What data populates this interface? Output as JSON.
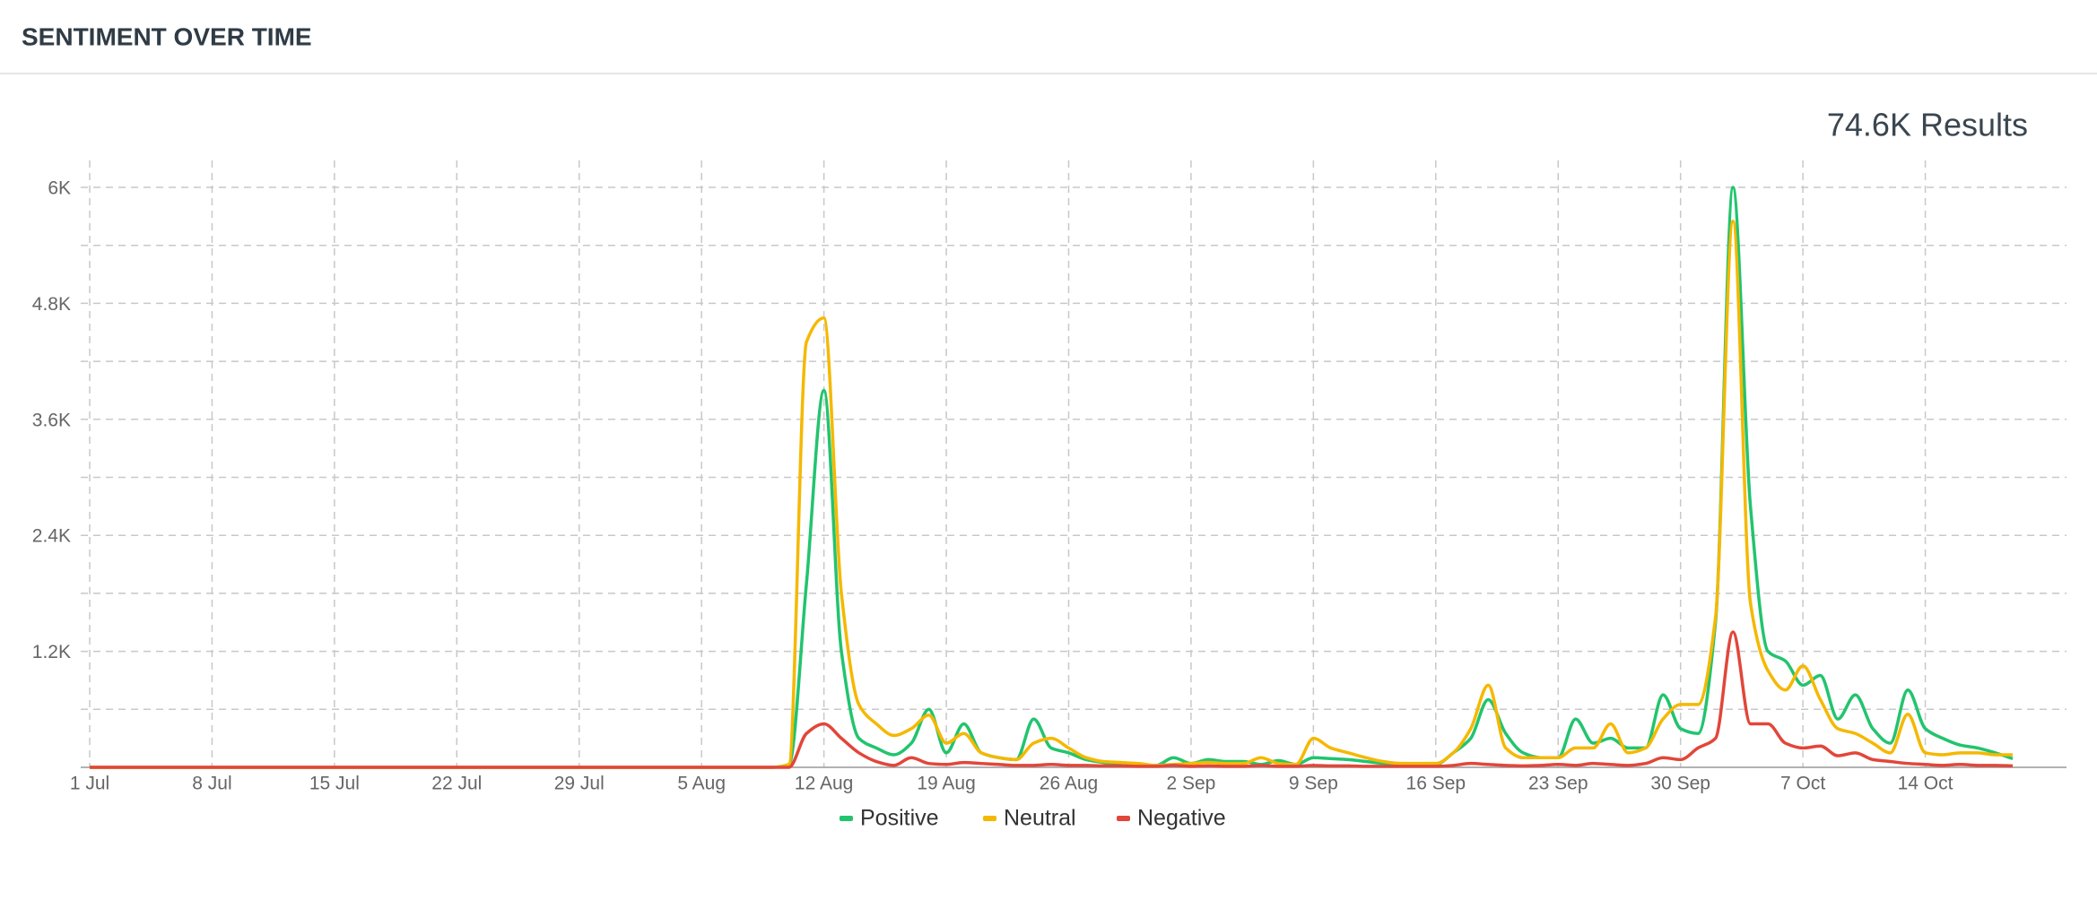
{
  "chart_data": {
    "type": "line",
    "title": "SENTIMENT OVER TIME",
    "results_label": "74.6K Results",
    "categories": [
      "1 Jul",
      null,
      null,
      null,
      null,
      null,
      null,
      "8 Jul",
      null,
      null,
      null,
      null,
      null,
      null,
      "15 Jul",
      null,
      null,
      null,
      null,
      null,
      null,
      "22 Jul",
      null,
      null,
      null,
      null,
      null,
      null,
      "29 Jul",
      null,
      null,
      null,
      null,
      null,
      null,
      "5 Aug",
      null,
      null,
      null,
      null,
      null,
      null,
      "12 Aug",
      null,
      null,
      null,
      null,
      null,
      null,
      "19 Aug",
      null,
      null,
      null,
      null,
      null,
      null,
      "26 Aug",
      null,
      null,
      null,
      null,
      null,
      null,
      "2 Sep",
      null,
      null,
      null,
      null,
      null,
      null,
      "9 Sep",
      null,
      null,
      null,
      null,
      null,
      null,
      "16 Sep",
      null,
      null,
      null,
      null,
      null,
      null,
      "23 Sep",
      null,
      null,
      null,
      null,
      null,
      null,
      "30 Sep",
      null,
      null,
      null,
      null,
      null,
      null,
      "7 Oct",
      null,
      null,
      null,
      null,
      null,
      null,
      "14 Oct",
      null,
      null,
      null,
      null,
      null
    ],
    "series": [
      {
        "name": "Positive",
        "color": "#22c46e",
        "values": [
          0,
          0,
          0,
          0,
          0,
          0,
          0,
          0,
          0,
          0,
          0,
          0,
          0,
          0,
          0,
          0,
          0,
          0,
          0,
          0,
          0,
          0,
          0,
          0,
          0,
          0,
          0,
          0,
          0,
          0,
          0,
          0,
          0,
          0,
          0,
          0,
          0,
          0,
          0,
          0,
          30,
          1900,
          3900,
          1200,
          300,
          200,
          130,
          250,
          600,
          150,
          450,
          150,
          100,
          80,
          500,
          200,
          150,
          80,
          50,
          30,
          20,
          20,
          100,
          40,
          80,
          60,
          60,
          30,
          70,
          30,
          100,
          90,
          80,
          60,
          40,
          30,
          30,
          30,
          150,
          300,
          700,
          350,
          150,
          100,
          100,
          500,
          250,
          300,
          200,
          200,
          750,
          400,
          350,
          1500,
          6000,
          2700,
          1200,
          1100,
          850,
          950,
          500,
          750,
          400,
          250,
          800,
          400,
          300,
          230,
          200,
          150,
          90
        ]
      },
      {
        "name": "Neutral",
        "color": "#f5b800",
        "values": [
          0,
          0,
          0,
          0,
          0,
          0,
          0,
          0,
          0,
          0,
          0,
          0,
          0,
          0,
          0,
          0,
          0,
          0,
          0,
          0,
          0,
          0,
          0,
          0,
          0,
          0,
          0,
          0,
          0,
          0,
          0,
          0,
          0,
          0,
          0,
          0,
          0,
          0,
          0,
          0,
          30,
          4400,
          4650,
          1800,
          650,
          450,
          330,
          400,
          540,
          250,
          350,
          150,
          100,
          80,
          250,
          300,
          200,
          100,
          60,
          50,
          40,
          20,
          30,
          40,
          50,
          40,
          40,
          100,
          40,
          30,
          300,
          200,
          150,
          100,
          60,
          40,
          40,
          40,
          150,
          400,
          850,
          200,
          100,
          100,
          100,
          200,
          200,
          450,
          150,
          200,
          500,
          650,
          650,
          1550,
          5650,
          1700,
          1000,
          800,
          1050,
          700,
          400,
          350,
          250,
          150,
          550,
          150,
          130,
          150,
          150,
          130,
          130
        ]
      },
      {
        "name": "Negative",
        "color": "#e2463a",
        "values": [
          0,
          0,
          0,
          0,
          0,
          0,
          0,
          0,
          0,
          0,
          0,
          0,
          0,
          0,
          0,
          0,
          0,
          0,
          0,
          0,
          0,
          0,
          0,
          0,
          0,
          0,
          0,
          0,
          0,
          0,
          0,
          0,
          0,
          0,
          0,
          0,
          0,
          0,
          0,
          0,
          0,
          350,
          450,
          300,
          150,
          60,
          20,
          100,
          40,
          30,
          50,
          40,
          30,
          20,
          20,
          30,
          20,
          20,
          15,
          15,
          10,
          10,
          20,
          10,
          15,
          10,
          10,
          20,
          10,
          10,
          20,
          15,
          15,
          10,
          10,
          10,
          10,
          10,
          20,
          40,
          30,
          20,
          15,
          20,
          30,
          20,
          40,
          30,
          20,
          40,
          100,
          80,
          200,
          300,
          1400,
          450,
          450,
          250,
          200,
          220,
          120,
          150,
          80,
          60,
          40,
          30,
          20,
          30,
          20,
          20,
          15
        ]
      }
    ],
    "ylim": [
      0,
      6000
    ],
    "yticks": [
      {
        "value": 1200,
        "label": "1.2K"
      },
      {
        "value": 2400,
        "label": "2.4K"
      },
      {
        "value": 3600,
        "label": "3.6K"
      },
      {
        "value": 4800,
        "label": "4.8K"
      },
      {
        "value": 6000,
        "label": "6K"
      }
    ],
    "minor_yticks": [
      600,
      1800,
      3000,
      4200,
      5400
    ],
    "grid": true
  }
}
